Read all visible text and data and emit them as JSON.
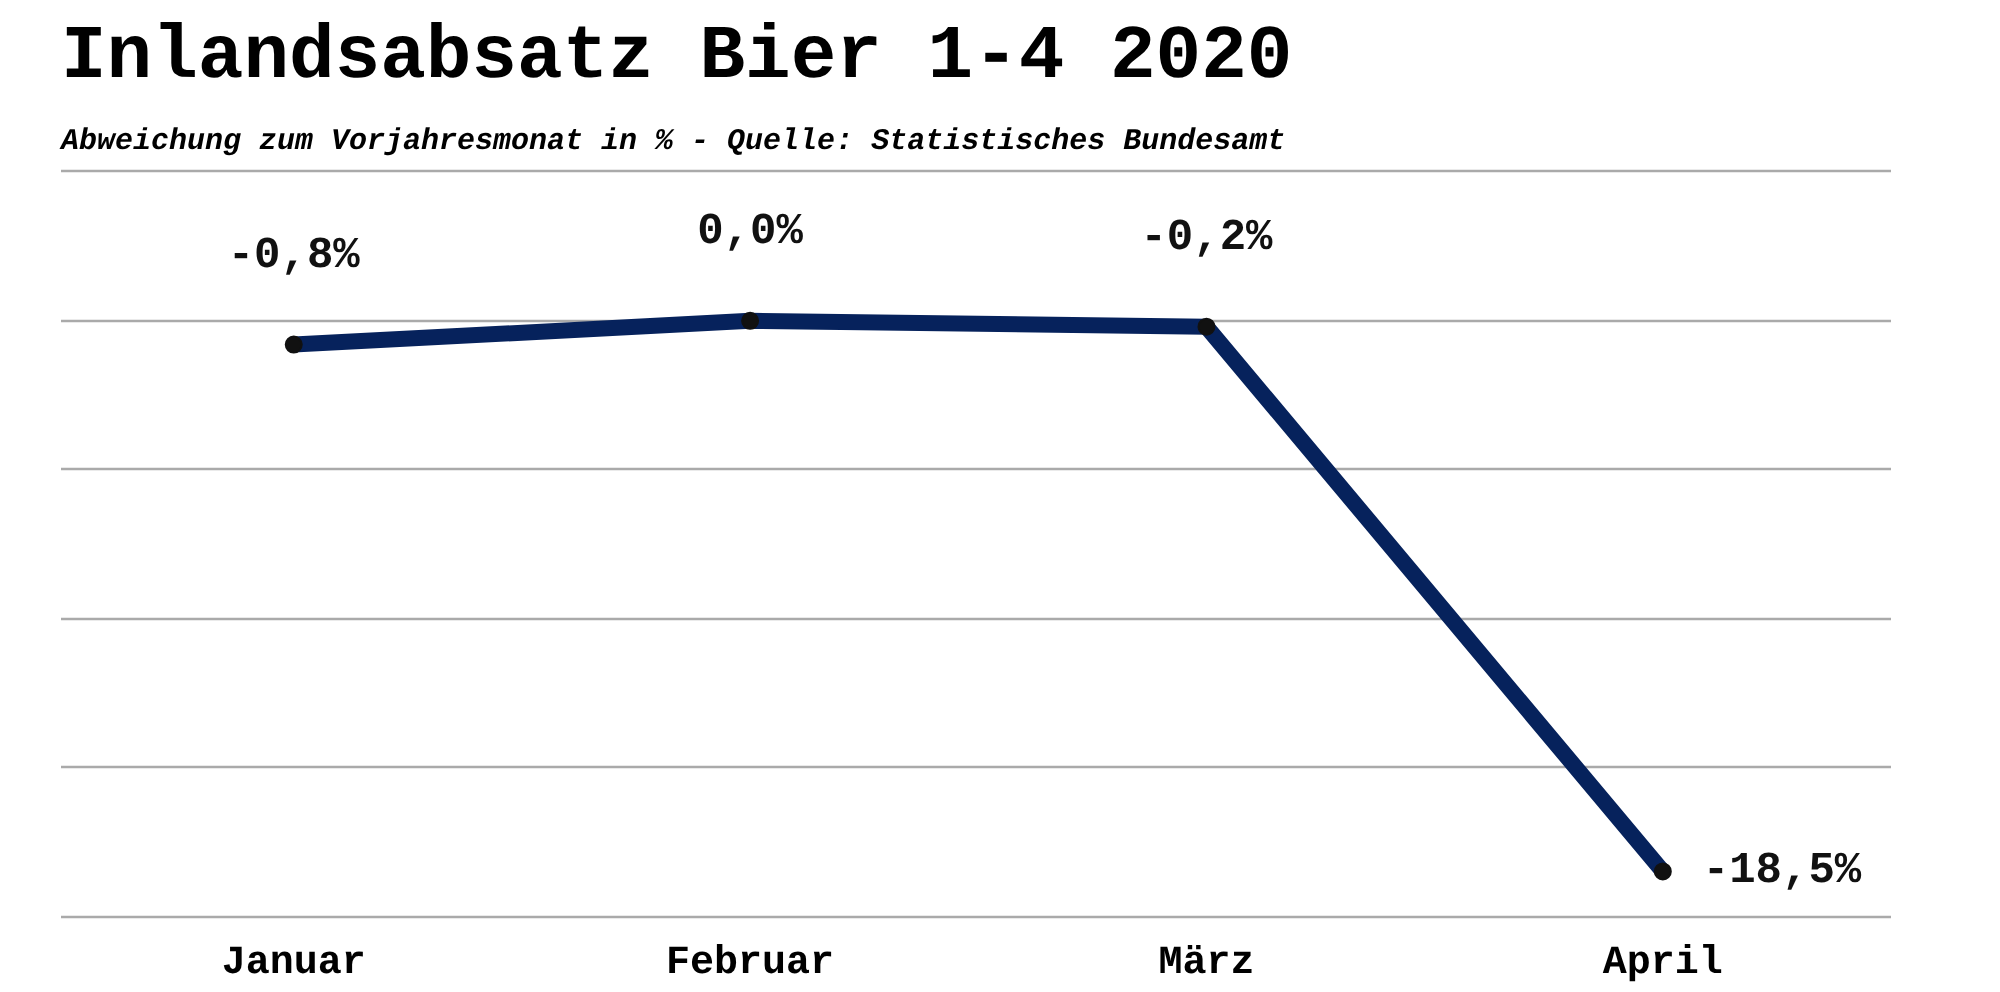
{
  "chart_data": {
    "type": "line",
    "title": "Inlandsabsatz Bier 1-4 2020",
    "subtitle": "Abweichung zum Vorjahresmonat in % - Quelle: Statistisches Bundesamt",
    "categories": [
      "Januar",
      "Februar",
      "März",
      "April"
    ],
    "series": [
      {
        "color": "#06225c",
        "values": [
          -0.8,
          0.0,
          -0.2,
          -18.5
        ],
        "value_labels": [
          "-0,8%",
          "0,0%",
          "-0,2%",
          "-18,5%"
        ]
      }
    ],
    "yticks": [
      {
        "value": -20,
        "label": null
      },
      {
        "value": -15,
        "label": null
      },
      {
        "value": -10,
        "label": null
      },
      {
        "value": -5,
        "label": null
      },
      {
        "value": 0,
        "label": null
      },
      {
        "value": 5,
        "label": null
      }
    ],
    "grid": "y",
    "tick_labels": "x",
    "marker": "circle"
  }
}
